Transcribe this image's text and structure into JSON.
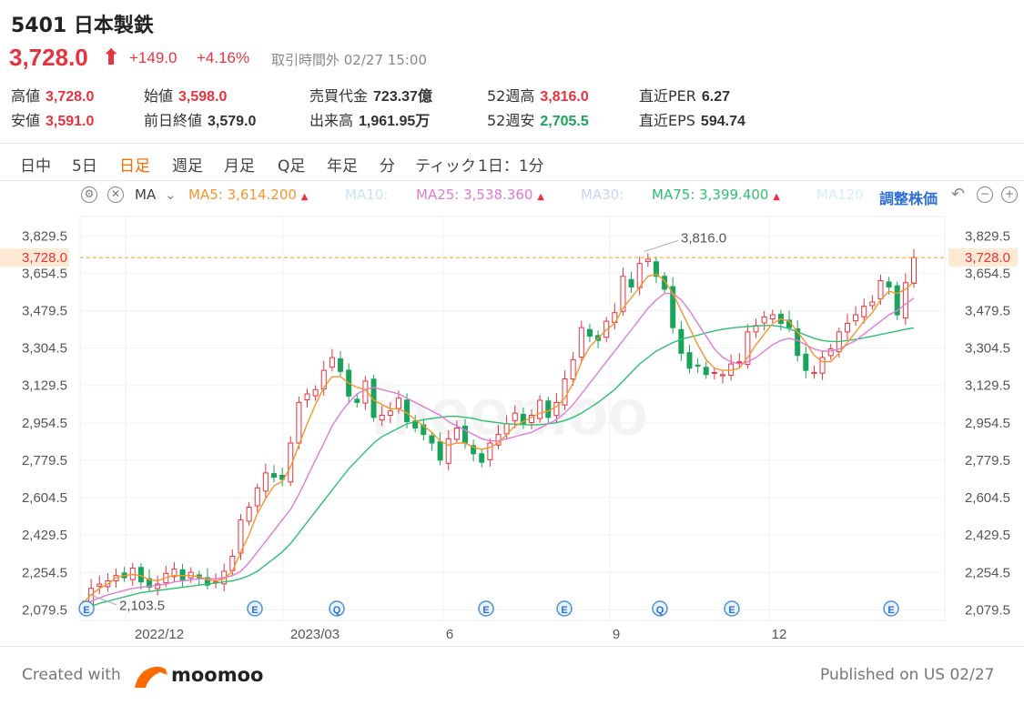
{
  "header": {
    "title": "5401 日本製鉄",
    "price": "3,728.0",
    "arrow": "⬆",
    "change": "+149.0",
    "change_pct": "+4.16%",
    "status": "取引時間外 02/27 15:00"
  },
  "stats": [
    {
      "label": "高値",
      "value": "3,728.0",
      "color": "red"
    },
    {
      "label": "始値",
      "value": "3,598.0",
      "color": "red"
    },
    {
      "label": "売買代金",
      "value": "723.37億",
      "color": "dark"
    },
    {
      "label": "52週高",
      "value": "3,816.0",
      "color": "red"
    },
    {
      "label": "直近PER",
      "value": "6.27",
      "color": "dark"
    },
    {
      "label": "安値",
      "value": "3,591.0",
      "color": "red"
    },
    {
      "label": "前日終値",
      "value": "3,579.0",
      "color": "dark"
    },
    {
      "label": "出来高",
      "value": "1,961.95万",
      "color": "dark"
    },
    {
      "label": "52週安",
      "value": "2,705.5",
      "color": "green"
    },
    {
      "label": "直近EPS",
      "value": "594.74",
      "color": "dark"
    }
  ],
  "tabs": [
    "日中",
    "5日",
    "日足",
    "週足",
    "月足",
    "Q足",
    "年足",
    "分",
    "ティック",
    "1日：1分"
  ],
  "active_tab": 2,
  "indicator_bar": {
    "ma_label": "MA",
    "adjust_label": "調整株価"
  },
  "ma_items": [
    {
      "label": "MA5:",
      "value": "3,614.200",
      "arrow": "▲",
      "color": "#f2962f"
    },
    {
      "label": "MA10:",
      "value": "",
      "arrow": "",
      "color": "#c9e3f5"
    },
    {
      "label": "MA25:",
      "value": "3,538.360",
      "arrow": "▲",
      "color": "#e07ad8"
    },
    {
      "label": "MA30:",
      "value": "",
      "arrow": "",
      "color": "#c9d3f5"
    },
    {
      "label": "MA75:",
      "value": "3,399.400",
      "arrow": "▲",
      "color": "#2fbf71"
    },
    {
      "label": "MA120",
      "value": "",
      "arrow": "",
      "color": "#d6ecfb"
    }
  ],
  "colors": {
    "up": "#e5333f",
    "down": "#1aa35a",
    "ma5": "#f2962f",
    "ma25": "#e07ad8",
    "ma75": "#2fbf71",
    "accent": "#ff6a00"
  },
  "chart_data": {
    "type": "candlestick",
    "x_ticks": [
      "2022/12",
      "2023/03",
      "6",
      "9",
      "12"
    ],
    "y_ticks": [
      3829.5,
      3654.5,
      3479.5,
      3304.5,
      3129.5,
      2954.5,
      2779.5,
      2604.5,
      2429.5,
      2254.5,
      2079.5
    ],
    "y_tick_labels": [
      "3,829.5",
      "3,654.5",
      "3,479.5",
      "3,304.5",
      "3,129.5",
      "2,954.5",
      "2,779.5",
      "2,604.5",
      "2,429.5",
      "2,254.5",
      "2,079.5"
    ],
    "ylim": [
      2030,
      3920
    ],
    "last_price": 3728.0,
    "last_price_label": "3,728.0",
    "high_annotation": {
      "value": 3816.0,
      "label": "3,816.0"
    },
    "low_annotation": {
      "value": 2103.5,
      "label": "2,103.5"
    },
    "event_markers": [
      "E",
      "E",
      "Q",
      "E",
      "E",
      "Q",
      "E",
      "E"
    ],
    "close_series": [
      2105,
      2180,
      2200,
      2215,
      2240,
      2230,
      2275,
      2210,
      2185,
      2200,
      2250,
      2270,
      2220,
      2255,
      2230,
      2195,
      2210,
      2260,
      2330,
      2500,
      2560,
      2650,
      2720,
      2700,
      2690,
      2860,
      3050,
      3090,
      3110,
      3200,
      3260,
      3195,
      3080,
      3050,
      3150,
      2980,
      2990,
      3010,
      3070,
      2960,
      2930,
      2900,
      2860,
      2780,
      2880,
      2930,
      2860,
      2810,
      2770,
      2860,
      2900,
      2950,
      3000,
      2950,
      2990,
      3060,
      2980,
      3050,
      3160,
      3250,
      3400,
      3360,
      3340,
      3430,
      3470,
      3640,
      3590,
      3700,
      3720,
      3640,
      3580,
      3400,
      3280,
      3210,
      3220,
      3180,
      3190,
      3180,
      3230,
      3240,
      3380,
      3410,
      3450,
      3460,
      3420,
      3400,
      3270,
      3200,
      3190,
      3260,
      3300,
      3380,
      3420,
      3460,
      3500,
      3520,
      3620,
      3590,
      3460,
      3610,
      3728
    ],
    "ma5_series": [
      2110,
      2150,
      2180,
      2200,
      2230,
      2240,
      2245,
      2240,
      2220,
      2215,
      2230,
      2240,
      2240,
      2240,
      2235,
      2220,
      2215,
      2225,
      2260,
      2350,
      2430,
      2530,
      2600,
      2660,
      2680,
      2750,
      2850,
      2950,
      3040,
      3120,
      3170,
      3170,
      3140,
      3120,
      3110,
      3060,
      3040,
      3020,
      3020,
      3000,
      2970,
      2940,
      2910,
      2870,
      2850,
      2860,
      2860,
      2840,
      2830,
      2840,
      2860,
      2900,
      2940,
      2960,
      2980,
      3000,
      3010,
      3030,
      3070,
      3140,
      3240,
      3310,
      3350,
      3390,
      3420,
      3490,
      3540,
      3590,
      3640,
      3650,
      3620,
      3560,
      3480,
      3400,
      3320,
      3250,
      3210,
      3200,
      3200,
      3210,
      3260,
      3320,
      3370,
      3420,
      3440,
      3430,
      3380,
      3330,
      3270,
      3240,
      3240,
      3280,
      3330,
      3380,
      3430,
      3470,
      3530,
      3570,
      3560,
      3580,
      3614
    ],
    "ma25_series": [
      2100,
      2120,
      2135,
      2150,
      2160,
      2170,
      2180,
      2185,
      2190,
      2195,
      2200,
      2210,
      2215,
      2220,
      2225,
      2225,
      2225,
      2230,
      2240,
      2260,
      2300,
      2350,
      2400,
      2450,
      2500,
      2550,
      2620,
      2700,
      2780,
      2860,
      2940,
      3000,
      3050,
      3090,
      3110,
      3120,
      3110,
      3100,
      3090,
      3070,
      3050,
      3030,
      3010,
      2990,
      2960,
      2940,
      2920,
      2900,
      2880,
      2870,
      2870,
      2880,
      2890,
      2900,
      2910,
      2930,
      2950,
      2970,
      3000,
      3040,
      3090,
      3140,
      3190,
      3240,
      3290,
      3340,
      3390,
      3440,
      3490,
      3530,
      3560,
      3560,
      3530,
      3480,
      3420,
      3360,
      3300,
      3260,
      3240,
      3230,
      3240,
      3260,
      3290,
      3320,
      3340,
      3350,
      3340,
      3320,
      3300,
      3290,
      3290,
      3300,
      3320,
      3340,
      3370,
      3400,
      3430,
      3460,
      3480,
      3510,
      3538
    ],
    "ma75_series": [
      2080,
      2095,
      2110,
      2120,
      2130,
      2140,
      2150,
      2160,
      2165,
      2170,
      2175,
      2180,
      2185,
      2190,
      2195,
      2200,
      2205,
      2210,
      2215,
      2225,
      2240,
      2260,
      2290,
      2320,
      2350,
      2390,
      2440,
      2490,
      2540,
      2590,
      2640,
      2690,
      2740,
      2780,
      2820,
      2860,
      2890,
      2910,
      2930,
      2950,
      2960,
      2970,
      2975,
      2980,
      2985,
      2985,
      2980,
      2975,
      2965,
      2960,
      2955,
      2950,
      2948,
      2946,
      2945,
      2946,
      2950,
      2955,
      2965,
      2980,
      3000,
      3025,
      3050,
      3080,
      3110,
      3150,
      3190,
      3230,
      3260,
      3290,
      3310,
      3330,
      3345,
      3355,
      3365,
      3375,
      3385,
      3392,
      3398,
      3402,
      3405,
      3408,
      3410,
      3410,
      3405,
      3395,
      3380,
      3365,
      3350,
      3340,
      3335,
      3335,
      3340,
      3345,
      3352,
      3360,
      3368,
      3376,
      3384,
      3392,
      3399
    ]
  },
  "footer": {
    "created_with": "Created with",
    "brand": "moomoo",
    "published": "Published on US 02/27"
  }
}
